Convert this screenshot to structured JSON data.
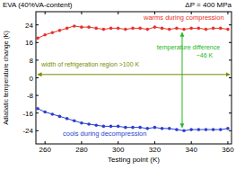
{
  "chart_data": {
    "type": "line",
    "title": "EVA (40%VA-content)",
    "subtitle": "ΔP = 400 MPa",
    "x_label": "Testing point (K)",
    "y_label": "Adiabatic temperature change (K)",
    "xlim": [
      255,
      362
    ],
    "ylim": [
      -30,
      30
    ],
    "xticks": [
      260,
      280,
      300,
      320,
      340,
      360
    ],
    "yticks": [
      -24,
      -16,
      -8,
      0,
      8,
      16,
      24
    ],
    "grid": false,
    "x": [
      256,
      260,
      264,
      268,
      272,
      276,
      280,
      284,
      288,
      292,
      296,
      300,
      304,
      308,
      312,
      316,
      320,
      324,
      328,
      332,
      336,
      340,
      344,
      348,
      352,
      356,
      360
    ],
    "series": [
      {
        "name": "warms during compression",
        "color": "#e8322d",
        "marker": "circle",
        "line_style": "solid",
        "values": [
          18,
          19.5,
          20.5,
          21.5,
          22.5,
          23.5,
          23,
          23,
          22.5,
          22,
          22.5,
          22.5,
          22,
          22.5,
          22.5,
          22,
          23,
          22.5,
          22,
          22.5,
          22,
          22.5,
          22.5,
          22,
          22.5,
          22.5,
          22
        ]
      },
      {
        "name": "cools during decompression",
        "color": "#2a3fd1",
        "marker": "circle",
        "line_style": "solid",
        "values": [
          -14,
          -15.5,
          -16.5,
          -17.5,
          -18.5,
          -19.5,
          -20.5,
          -21,
          -21.5,
          -22,
          -22,
          -22,
          -22.5,
          -22.5,
          -22.5,
          -23,
          -22.5,
          -23,
          -23,
          -23.5,
          -24,
          -23.5,
          -23.5,
          -23.5,
          -23.5,
          -23.5,
          -23
        ]
      }
    ],
    "annotations": [
      {
        "text": "temperature difference",
        "color": "#22b822"
      },
      {
        "text": "~46 K",
        "color": "#22b822"
      },
      {
        "text": "width of refrigeration region >100 K",
        "color": "#7a8a00"
      }
    ]
  }
}
